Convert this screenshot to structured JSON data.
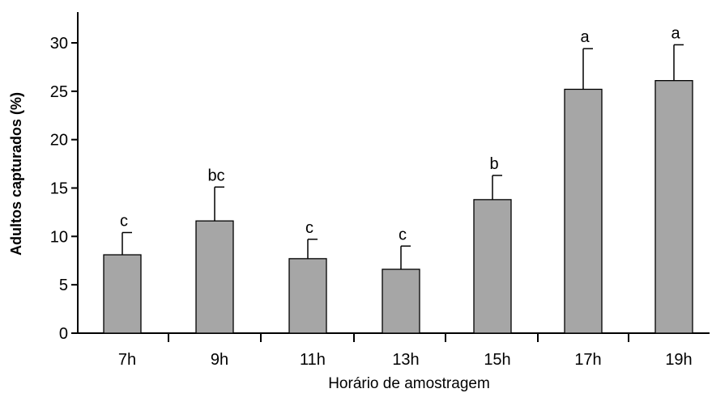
{
  "chart_data": {
    "type": "bar",
    "title": "",
    "xlabel": "Horário de amostragem",
    "ylabel": "Adultos capturados (%)",
    "ylim": [
      0,
      30
    ],
    "yticks": [
      0,
      5,
      10,
      15,
      20,
      25,
      30
    ],
    "categories": [
      "7h",
      "9h",
      "11h",
      "13h",
      "15h",
      "17h",
      "19h"
    ],
    "values": [
      8.1,
      11.6,
      7.7,
      6.6,
      13.8,
      25.2,
      26.1
    ],
    "errors": [
      2.3,
      3.5,
      2.0,
      2.4,
      2.5,
      4.2,
      3.7
    ],
    "letters": [
      "c",
      "bc",
      "c",
      "c",
      "b",
      "a",
      "a"
    ],
    "bar_color": "#a6a6a6",
    "grid": false
  }
}
